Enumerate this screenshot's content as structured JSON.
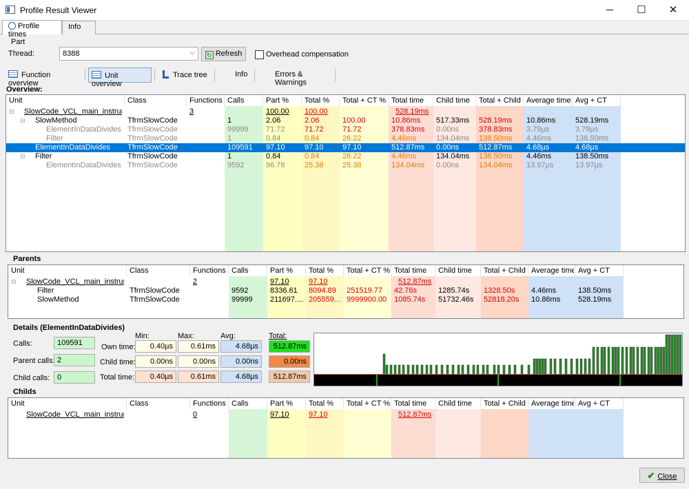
{
  "window": {
    "title": "Profile Result Viewer",
    "minimize": "─",
    "maximize": "☐",
    "close": "✕"
  },
  "tabs": [
    {
      "label": "Profile times"
    },
    {
      "label": "Info"
    }
  ],
  "part": {
    "group_label": "Part",
    "thread_label": "Thread:",
    "thread_value": "8388",
    "refresh_label": "Refresh",
    "overhead_label": "Overhead compensation"
  },
  "toolbar": [
    {
      "label": "Function overview"
    },
    {
      "label": "Unit overview"
    },
    {
      "label": "Trace tree"
    },
    {
      "label": "Info"
    },
    {
      "label": "Errors & Warnings"
    }
  ],
  "columns": [
    "Unit",
    "Class",
    "Functions",
    "Calls",
    "Part %",
    "Total %",
    "Total + CT %",
    "Total time",
    "Child time",
    "Total + Child",
    "Average time",
    "Avg + CT"
  ],
  "colors": {
    "calls": "#d6f5d6",
    "part": "#ffffc2",
    "total": "#fff7c2",
    "totalct": "#fffdd2",
    "totaltime": "#fddcd2",
    "childtime": "#fde8e2",
    "totalchild": "#fdd6c6",
    "avg": "#cfe1f7",
    "avgct": "#cfe1f7",
    "selected": "#0078d7",
    "hist_bg": "#000000",
    "hist_bar": "#2e8b2e"
  },
  "overview": {
    "title": "Overview:",
    "rows": [
      {
        "tree": "⊟",
        "unit": "SlowCode_VCL_main_instrum...",
        "class": "",
        "functions": "3",
        "calls": "",
        "part": "100.00",
        "total": "100.00",
        "totalct": "",
        "totaltime": "528.19ms",
        "childtime": "",
        "totalchild": "",
        "avg": "",
        "avgct": ""
      },
      {
        "tree": "⊟",
        "unit": "SlowMethod",
        "class": "TfrmSlowCode",
        "functions": "",
        "calls": "1",
        "part": "2.06",
        "total": "2.06",
        "totalct": "100.00",
        "totaltime": "10.86ms",
        "childtime": "517.33ms",
        "totalchild": "528.19ms",
        "avg": "10.86ms",
        "avgct": "528.19ms"
      },
      {
        "tree": "",
        "unit": "ElementInDataDivides",
        "class": "TfrmSlowCode",
        "functions": "",
        "calls": "99999",
        "part": "71.72",
        "total": "71.72",
        "totalct": "71.72",
        "totaltime": "378.83ms",
        "childtime": "0.00ns",
        "totalchild": "378.83ms",
        "avg": "3.79µs",
        "avgct": "3.79µs"
      },
      {
        "tree": "",
        "unit": "Filter",
        "class": "TfrmSlowCode",
        "functions": "",
        "calls": "1",
        "part": "0.84",
        "total": "0.84",
        "totalct": "26.22",
        "totaltime": "4.46ms",
        "childtime": "134.04ms",
        "totalchild": "138.50ms",
        "avg": "4.46ms",
        "avgct": "138.50ms"
      },
      {
        "tree": "",
        "unit": "ElementInDataDivides",
        "class": "TfrmSlowCode",
        "functions": "",
        "calls": "109591",
        "part": "97.10",
        "total": "97.10",
        "totalct": "97.10",
        "totaltime": "512.87ms",
        "childtime": "0.00ns",
        "totalchild": "512.87ms",
        "avg": "4.68µs",
        "avgct": "4.68µs"
      },
      {
        "tree": "⊟",
        "unit": "Filter",
        "class": "TfrmSlowCode",
        "functions": "",
        "calls": "1",
        "part": "0.84",
        "total": "0.84",
        "totalct": "26.22",
        "totaltime": "4.46ms",
        "childtime": "134.04ms",
        "totalchild": "138.50ms",
        "avg": "4.46ms",
        "avgct": "138.50ms"
      },
      {
        "tree": "",
        "unit": "ElementInDataDivides",
        "class": "TfrmSlowCode",
        "functions": "",
        "calls": "9592",
        "part": "96.78",
        "total": "25.38",
        "totalct": "25.38",
        "totaltime": "134.04ms",
        "childtime": "0.00ns",
        "totalchild": "134.04ms",
        "avg": "13.97µs",
        "avgct": "13.97µs"
      }
    ]
  },
  "parents": {
    "title": "Parents",
    "rows": [
      {
        "tree": "⊟",
        "unit": "SlowCode_VCL_main_instrum...",
        "class": "",
        "functions": "2",
        "calls": "",
        "part": "97.10",
        "total": "97.10",
        "totalct": "",
        "totaltime": "512.87ms",
        "childtime": "",
        "totalchild": "",
        "avg": "",
        "avgct": ""
      },
      {
        "tree": "",
        "unit": "Filter",
        "class": "TfrmSlowCode",
        "functions": "",
        "calls": "9592",
        "part": "8336.61",
        "total": "8094.89",
        "totalct": "251519.77",
        "totaltime": "42.76s",
        "childtime": "1285.74s",
        "totalchild": "1328.50s",
        "avg": "4.46ms",
        "avgct": "138.50ms"
      },
      {
        "tree": "",
        "unit": "SlowMethod",
        "class": "TfrmSlowCode",
        "functions": "",
        "calls": "99999",
        "part": "211697....",
        "total": "205559....",
        "totalct": "9999900.00",
        "totaltime": "1085.74s",
        "childtime": "51732.46s",
        "totalchild": "52818.20s",
        "avg": "10.86ms",
        "avgct": "528.19ms"
      }
    ]
  },
  "details": {
    "title": "Details (ElementInDataDivides)",
    "calls_label": "Calls:",
    "calls": "109591",
    "parent_calls_label": "Parent calls:",
    "parent_calls": "2",
    "child_calls_label": "Child calls:",
    "child_calls": "0",
    "min_label": "Min:",
    "max_label": "Max:",
    "avg_label": "Avg:",
    "total_label": "Total:",
    "own_label": "Own time:",
    "child_label": "Child time:",
    "totaltime_label": "Total time:",
    "own": {
      "min": "0.40µs",
      "max": "0.61ms",
      "avg": "4.68µs",
      "total": "512.87ms"
    },
    "child": {
      "min": "0.00ns",
      "max": "0.00ns",
      "avg": "0.00ns",
      "total": "0.00ns"
    },
    "tot": {
      "min": "0.40µs",
      "max": "0.61ms",
      "avg": "4.68µs",
      "total": "512.87ms"
    }
  },
  "childs": {
    "title": "Childs",
    "rows": [
      {
        "tree": "",
        "unit": "SlowCode_VCL_main_instrum...",
        "class": "",
        "functions": "0",
        "calls": "",
        "part": "97.10",
        "total": "97.10",
        "totalct": "",
        "totaltime": "512.87ms",
        "childtime": "",
        "totalchild": "",
        "avg": "",
        "avgct": ""
      }
    ]
  },
  "close_label": "Close"
}
